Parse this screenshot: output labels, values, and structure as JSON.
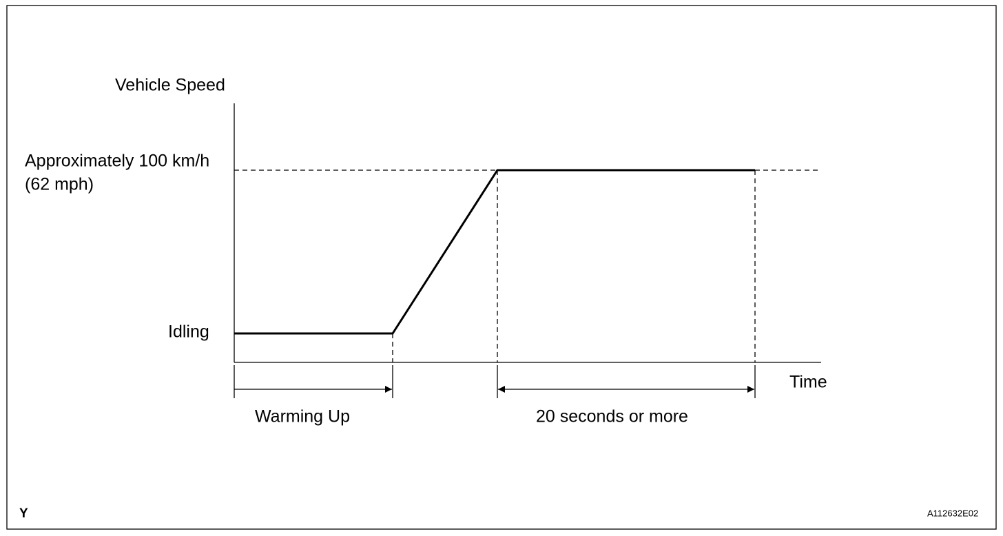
{
  "diagram": {
    "y_axis_label": "Vehicle Speed",
    "speed_level": "Approximately 100 km/h",
    "speed_level_mph": "(62 mph)",
    "idle_level": "Idling",
    "x_axis_label": "Time",
    "phase_1": "Warming Up",
    "phase_2": "20 seconds or more",
    "corner_mark": "Y",
    "figure_id": "A112632E02"
  }
}
